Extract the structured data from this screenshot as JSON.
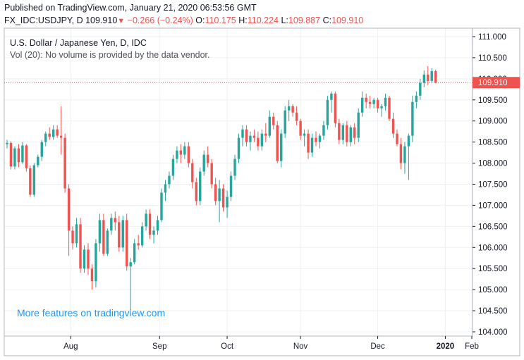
{
  "header": {
    "published_line": "Published on TradingView.com, January 21, 2020 06:53:56 GMT",
    "symbol": "FX_IDC:USDJPY, D",
    "last": "109.910",
    "down_arrow": "▼",
    "change": "−0.266 (−0.24%)",
    "o_label": "O:",
    "o_value": "110.175",
    "h_label": "H:",
    "h_value": "110.224",
    "l_label": "L:",
    "l_value": "109.887",
    "c_label": "C:",
    "c_value": "109.910"
  },
  "legend": {
    "title": "U.S. Dollar / Japanese Yen, D, IDC",
    "volume_note": "Vol (20): No volume is provided by the data vendor."
  },
  "watermark": "More features on tradingview.com",
  "colors": {
    "up": "#26a69a",
    "down": "#ef5350",
    "grid": "#eef0f3",
    "axis": "#131722",
    "watermark": "#2196f3",
    "price_line": "#ef5350"
  },
  "chart_data": {
    "type": "candlestick",
    "title": "U.S. Dollar / Japanese Yen, D, IDC",
    "ylim": [
      103.9,
      111.2
    ],
    "y_ticks": [
      "111.000",
      "110.500",
      "110.000",
      "109.500",
      "109.000",
      "108.500",
      "108.000",
      "107.500",
      "107.000",
      "106.500",
      "106.000",
      "105.500",
      "105.000",
      "104.500",
      "104.000"
    ],
    "x_ticks": [
      "Aug",
      "Sep",
      "Oct",
      "Nov",
      "Dec",
      "2020",
      "Feb"
    ],
    "last_price_label": "109.910",
    "last_price": 109.91,
    "candles": [
      [
        108.45,
        108.55,
        108.35,
        108.48
      ],
      [
        108.48,
        108.52,
        107.85,
        107.92
      ],
      [
        107.92,
        108.4,
        107.85,
        108.35
      ],
      [
        108.35,
        108.45,
        107.9,
        108.02
      ],
      [
        108.02,
        108.5,
        107.98,
        108.42
      ],
      [
        108.42,
        108.45,
        107.8,
        107.88
      ],
      [
        107.88,
        107.95,
        107.2,
        107.25
      ],
      [
        107.25,
        108.0,
        107.2,
        107.95
      ],
      [
        107.95,
        108.2,
        107.9,
        108.15
      ],
      [
        108.15,
        108.55,
        108.05,
        108.5
      ],
      [
        108.5,
        108.75,
        108.4,
        108.7
      ],
      [
        108.7,
        108.85,
        108.55,
        108.62
      ],
      [
        108.62,
        108.9,
        108.55,
        108.8
      ],
      [
        108.8,
        108.9,
        108.6,
        108.65
      ],
      [
        108.65,
        109.35,
        108.2,
        108.6
      ],
      [
        108.6,
        108.7,
        107.3,
        107.4
      ],
      [
        107.4,
        107.5,
        105.8,
        106.4
      ],
      [
        106.4,
        106.5,
        105.95,
        106.1
      ],
      [
        106.1,
        106.7,
        106.0,
        106.55
      ],
      [
        106.55,
        106.7,
        105.4,
        105.5
      ],
      [
        105.5,
        106.05,
        105.4,
        105.95
      ],
      [
        105.95,
        106.1,
        105.35,
        105.5
      ],
      [
        105.5,
        105.6,
        105.0,
        105.2
      ],
      [
        105.2,
        106.2,
        105.05,
        106.1
      ],
      [
        106.1,
        106.8,
        105.9,
        106.65
      ],
      [
        106.65,
        106.8,
        105.8,
        105.85
      ],
      [
        105.85,
        106.45,
        105.8,
        106.4
      ],
      [
        106.4,
        106.8,
        106.3,
        106.7
      ],
      [
        106.7,
        106.85,
        106.4,
        106.6
      ],
      [
        106.6,
        106.75,
        105.9,
        106.0
      ],
      [
        106.0,
        106.75,
        105.9,
        106.65
      ],
      [
        106.65,
        106.8,
        105.45,
        105.55
      ],
      [
        105.55,
        105.75,
        104.5,
        105.65
      ],
      [
        105.65,
        106.2,
        105.6,
        106.1
      ],
      [
        106.1,
        106.3,
        105.95,
        106.05
      ],
      [
        106.05,
        106.6,
        106.0,
        106.5
      ],
      [
        106.5,
        106.9,
        106.4,
        106.8
      ],
      [
        106.8,
        106.9,
        106.2,
        106.3
      ],
      [
        106.3,
        106.5,
        106.1,
        106.4
      ],
      [
        106.4,
        106.75,
        106.3,
        106.65
      ],
      [
        106.65,
        107.4,
        106.6,
        107.3
      ],
      [
        107.3,
        107.6,
        107.1,
        107.5
      ],
      [
        107.5,
        107.8,
        107.4,
        107.7
      ],
      [
        107.7,
        108.2,
        107.6,
        108.1
      ],
      [
        108.1,
        108.4,
        108.0,
        108.3
      ],
      [
        108.3,
        108.45,
        108.0,
        108.2
      ],
      [
        108.2,
        108.5,
        108.1,
        108.4
      ],
      [
        108.4,
        108.5,
        107.9,
        108.0
      ],
      [
        108.0,
        108.1,
        107.4,
        107.55
      ],
      [
        107.55,
        107.65,
        107.0,
        107.1
      ],
      [
        107.1,
        107.9,
        107.0,
        107.8
      ],
      [
        107.8,
        108.3,
        107.7,
        108.2
      ],
      [
        108.2,
        108.4,
        107.9,
        108.0
      ],
      [
        108.0,
        108.1,
        107.4,
        107.5
      ],
      [
        107.5,
        107.65,
        107.0,
        107.1
      ],
      [
        107.1,
        107.6,
        106.6,
        107.4
      ],
      [
        107.4,
        107.5,
        106.85,
        106.95
      ],
      [
        106.95,
        107.35,
        106.7,
        107.2
      ],
      [
        107.2,
        107.8,
        107.1,
        107.7
      ],
      [
        107.7,
        108.2,
        107.6,
        108.1
      ],
      [
        108.1,
        108.7,
        108.0,
        108.6
      ],
      [
        108.6,
        108.9,
        108.4,
        108.8
      ],
      [
        108.8,
        108.9,
        108.4,
        108.5
      ],
      [
        108.5,
        108.75,
        108.3,
        108.65
      ],
      [
        108.65,
        108.8,
        108.5,
        108.6
      ],
      [
        108.6,
        108.75,
        108.3,
        108.4
      ],
      [
        108.4,
        108.8,
        108.3,
        108.7
      ],
      [
        108.7,
        108.95,
        108.5,
        108.65
      ],
      [
        108.65,
        109.25,
        108.6,
        109.1
      ],
      [
        109.1,
        109.2,
        108.8,
        108.9
      ],
      [
        108.9,
        109.0,
        108.0,
        108.05
      ],
      [
        108.05,
        108.8,
        107.9,
        108.7
      ],
      [
        108.7,
        109.35,
        108.6,
        109.25
      ],
      [
        109.25,
        109.5,
        109.0,
        109.35
      ],
      [
        109.35,
        109.4,
        109.1,
        109.2
      ],
      [
        109.2,
        109.35,
        108.9,
        109.0
      ],
      [
        109.0,
        109.05,
        108.55,
        108.65
      ],
      [
        108.65,
        108.8,
        108.4,
        108.7
      ],
      [
        108.7,
        108.8,
        108.1,
        108.25
      ],
      [
        108.25,
        108.7,
        108.15,
        108.6
      ],
      [
        108.6,
        108.75,
        108.4,
        108.5
      ],
      [
        108.5,
        108.7,
        108.35,
        108.65
      ],
      [
        108.65,
        109.0,
        108.55,
        108.9
      ],
      [
        108.9,
        109.6,
        108.8,
        109.5
      ],
      [
        109.5,
        109.7,
        109.2,
        109.65
      ],
      [
        109.65,
        109.7,
        108.85,
        108.95
      ],
      [
        108.95,
        109.05,
        108.45,
        108.55
      ],
      [
        108.55,
        108.95,
        108.45,
        108.9
      ],
      [
        108.9,
        109.0,
        108.4,
        108.5
      ],
      [
        108.5,
        108.9,
        108.4,
        108.85
      ],
      [
        108.85,
        108.95,
        108.45,
        108.6
      ],
      [
        108.6,
        109.3,
        108.5,
        109.2
      ],
      [
        109.2,
        109.7,
        109.1,
        109.55
      ],
      [
        109.55,
        109.65,
        109.3,
        109.45
      ],
      [
        109.45,
        109.6,
        109.3,
        109.4
      ],
      [
        109.4,
        109.55,
        109.3,
        109.5
      ],
      [
        109.5,
        109.55,
        109.2,
        109.3
      ],
      [
        109.3,
        109.4,
        109.1,
        109.35
      ],
      [
        109.35,
        109.65,
        109.25,
        109.55
      ],
      [
        109.55,
        109.6,
        109.0,
        109.05
      ],
      [
        109.05,
        109.2,
        108.6,
        108.7
      ],
      [
        108.7,
        108.8,
        108.4,
        108.45
      ],
      [
        108.45,
        108.6,
        107.85,
        108.0
      ],
      [
        108.0,
        108.5,
        107.75,
        108.4
      ],
      [
        108.4,
        108.7,
        107.6,
        108.65
      ],
      [
        108.65,
        109.6,
        108.5,
        109.45
      ],
      [
        109.45,
        109.7,
        109.3,
        109.6
      ],
      [
        109.6,
        110.0,
        109.5,
        109.9
      ],
      [
        109.9,
        110.2,
        109.8,
        110.1
      ],
      [
        110.1,
        110.3,
        109.85,
        109.95
      ],
      [
        109.95,
        110.25,
        109.9,
        110.18
      ],
      [
        110.18,
        110.22,
        109.89,
        109.91
      ]
    ]
  }
}
